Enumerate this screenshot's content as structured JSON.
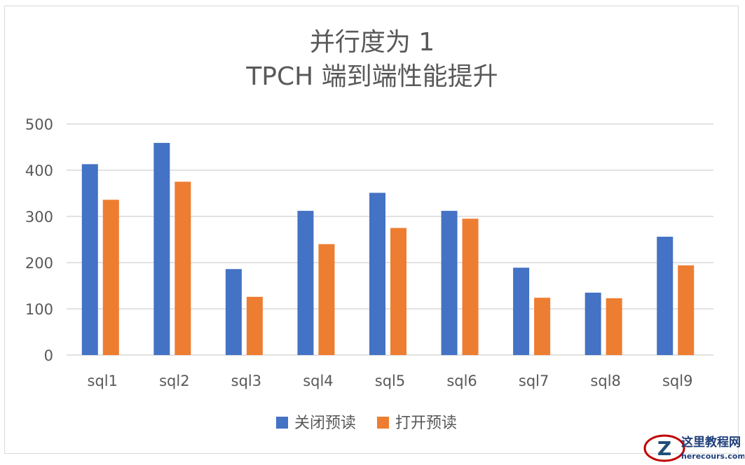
{
  "chart_data": {
    "type": "bar",
    "title": [
      "并行度为 1",
      "TPCH 端到端性能提升"
    ],
    "categories": [
      "sql1",
      "sql2",
      "sql3",
      "sql4",
      "sql5",
      "sql6",
      "sql7",
      "sql8",
      "sql9"
    ],
    "series": [
      {
        "name": "关闭预读",
        "color": "#4472c4",
        "values": [
          413,
          459,
          186,
          312,
          351,
          312,
          189,
          135,
          256
        ]
      },
      {
        "name": "打开预读",
        "color": "#ed7d31",
        "values": [
          336,
          375,
          126,
          240,
          275,
          295,
          124,
          123,
          194
        ]
      }
    ],
    "ylim": [
      0,
      500
    ],
    "yticks": [
      0,
      100,
      200,
      300,
      400,
      500
    ],
    "xlabel": "",
    "ylabel": "",
    "grid": true,
    "legend": "bottom"
  },
  "watermark": {
    "logo_letter": "Z",
    "title": "这里教程网",
    "subtitle": "herecours.com"
  }
}
